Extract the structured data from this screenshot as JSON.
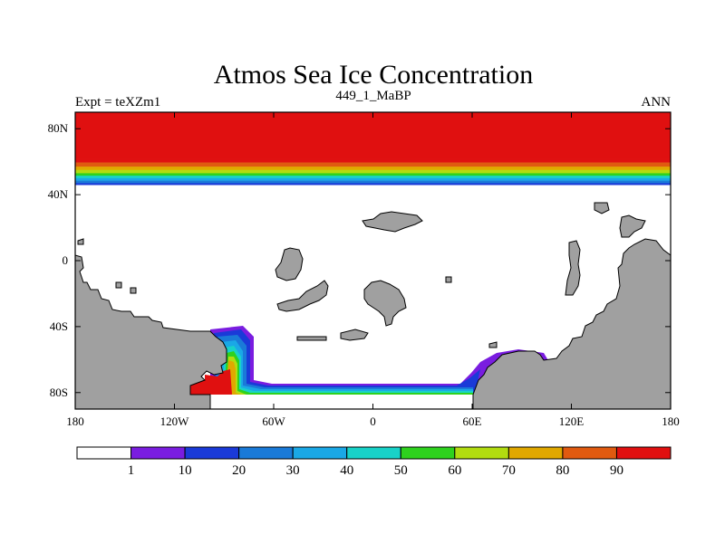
{
  "chart_data": {
    "type": "heatmap",
    "title": "Atmos Sea Ice Concentration",
    "subtitle_left": "Expt = teXZm1",
    "subtitle_center": "449_1_MaBP",
    "subtitle_right": "ANN",
    "xlabel": "",
    "ylabel": "",
    "xlim": [
      -180,
      180
    ],
    "ylim": [
      -90,
      90
    ],
    "x_ticks": [
      {
        "value": -180,
        "label": "180"
      },
      {
        "value": -120,
        "label": "120W"
      },
      {
        "value": -60,
        "label": "60W"
      },
      {
        "value": 0,
        "label": "0"
      },
      {
        "value": 60,
        "label": "60E"
      },
      {
        "value": 120,
        "label": "120E"
      },
      {
        "value": 180,
        "label": "180"
      }
    ],
    "y_ticks": [
      {
        "value": 80,
        "label": "80N"
      },
      {
        "value": 40,
        "label": "40N"
      },
      {
        "value": 0,
        "label": "0"
      },
      {
        "value": -40,
        "label": "40S"
      },
      {
        "value": -80,
        "label": "80S"
      }
    ],
    "colorbar": {
      "levels": [
        1,
        10,
        20,
        30,
        40,
        50,
        60,
        70,
        80,
        90
      ],
      "labels": [
        "1",
        "10",
        "20",
        "30",
        "40",
        "50",
        "60",
        "70",
        "80",
        "90"
      ],
      "colors": [
        "#ffffff",
        "#7a1de0",
        "#1a3ad8",
        "#1a7ad8",
        "#1aa8e6",
        "#18d2c8",
        "#2ed21e",
        "#b2dc10",
        "#e0a800",
        "#e05a10",
        "#e01010"
      ]
    },
    "north_band": [
      {
        "lat": 90,
        "value": 95
      },
      {
        "lat": 62,
        "value": 95
      },
      {
        "lat": 59.5,
        "value": 85
      },
      {
        "lat": 57,
        "value": 75
      },
      {
        "lat": 55,
        "value": 65
      },
      {
        "lat": 53,
        "value": 55
      },
      {
        "lat": 51.5,
        "value": 45
      },
      {
        "lat": 50,
        "value": 35
      },
      {
        "lat": 48.5,
        "value": 25
      },
      {
        "lat": 47,
        "value": 15
      },
      {
        "lat": 46,
        "value": 5
      }
    ],
    "land_color": "#a0a0a0"
  }
}
